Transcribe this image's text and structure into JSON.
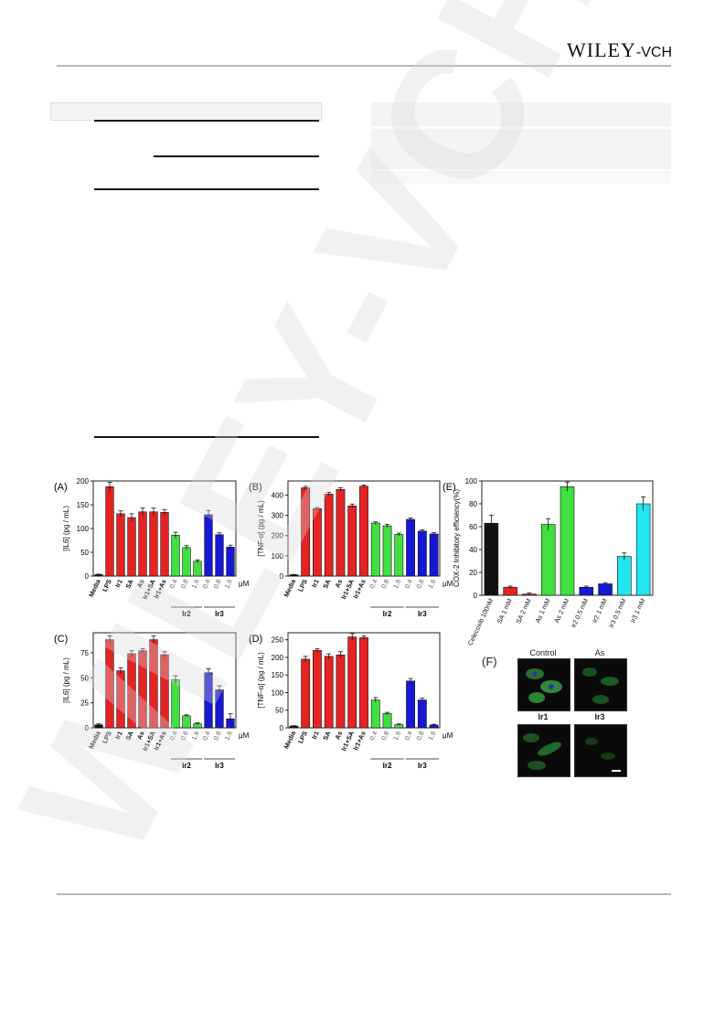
{
  "header": {
    "publisher_main": "WILEY",
    "publisher_suffix": "-VCH"
  },
  "watermark": {
    "text": "WILEY-VCH"
  },
  "colors": {
    "red": "#e52323",
    "green": "#3fe03f",
    "blue": "#1717d6",
    "cyan": "#22e6ef",
    "black": "#111111",
    "accent_rule": "#b9b9b9"
  },
  "figure": {
    "unit_label": "μM",
    "groups": {
      "ir2": "Ir2",
      "ir3": "Ir3"
    },
    "microscopy": {
      "label": "(F)",
      "cells": [
        "Control",
        "As",
        "Ir1",
        "Ir3"
      ]
    }
  },
  "chart_data": [
    {
      "type": "bar",
      "panel": "(A)",
      "ylabel": "[IL6] (pg / mL)",
      "ylim": [
        0,
        200
      ],
      "yticks": [
        0,
        50,
        100,
        150,
        200
      ],
      "categories": [
        "Media",
        "LPS",
        "Ir1",
        "SA",
        "As",
        "Ir1+SA",
        "Ir1+As",
        "0.4",
        "0.8",
        "1.6",
        "0.4",
        "0.8",
        "1.6"
      ],
      "values": [
        3,
        188,
        131,
        123,
        135,
        135,
        134,
        86,
        60,
        31,
        129,
        87,
        61
      ],
      "errors": [
        1,
        9,
        6,
        8,
        8,
        8,
        6,
        6,
        4,
        3,
        9,
        4,
        4
      ],
      "colors": [
        "black",
        "red",
        "red",
        "red",
        "red",
        "red",
        "red",
        "green",
        "green",
        "green",
        "blue",
        "blue",
        "blue"
      ]
    },
    {
      "type": "bar",
      "panel": "(B)",
      "ylabel": "[TNF-α] (pg / mL)",
      "ylim": [
        0,
        470
      ],
      "yticks": [
        0,
        100,
        200,
        300,
        400
      ],
      "categories": [
        "Media",
        "LPS",
        "Ir1",
        "SA",
        "As",
        "Ir1+SA",
        "Ir1+As",
        "0.4",
        "0.8",
        "1.6",
        "0.4",
        "0.8",
        "1.6"
      ],
      "values": [
        6,
        436,
        333,
        405,
        428,
        347,
        444,
        262,
        248,
        206,
        280,
        222,
        208
      ],
      "errors": [
        2,
        7,
        6,
        8,
        8,
        9,
        6,
        6,
        8,
        6,
        7,
        6,
        6
      ],
      "colors": [
        "black",
        "red",
        "red",
        "red",
        "red",
        "red",
        "red",
        "green",
        "green",
        "green",
        "blue",
        "blue",
        "blue"
      ]
    },
    {
      "type": "bar",
      "panel": "(C)",
      "ylabel": "[IL6] (pg / mL)",
      "ylim": [
        0,
        95
      ],
      "yticks": [
        0,
        25,
        50,
        75
      ],
      "categories": [
        "Media",
        "LPS",
        "Ir1",
        "SA",
        "As",
        "Ir1+SA",
        "Ir1+As",
        "0.4",
        "0.8",
        "1.6",
        "0.4",
        "0.8",
        "1.6"
      ],
      "values": [
        3,
        88,
        57,
        74,
        77,
        88,
        73,
        48,
        12,
        4,
        55,
        38,
        9
      ],
      "errors": [
        1,
        4,
        3,
        3,
        2,
        4,
        3,
        4,
        1,
        1,
        4,
        4,
        5
      ],
      "colors": [
        "black",
        "red",
        "red",
        "red",
        "red",
        "red",
        "red",
        "green",
        "green",
        "green",
        "blue",
        "blue",
        "blue"
      ]
    },
    {
      "type": "bar",
      "panel": "(D)",
      "ylabel": "[TNF-α] (pg / mL)",
      "ylim": [
        0,
        270
      ],
      "yticks": [
        0,
        50,
        100,
        150,
        200,
        250
      ],
      "categories": [
        "Media",
        "LPS",
        "Ir1",
        "SA",
        "As",
        "Ir1+SA",
        "Ir1+As",
        "0.4",
        "0.8",
        "1.6",
        "0.4",
        "0.8",
        "1.6"
      ],
      "values": [
        5,
        195,
        220,
        203,
        207,
        258,
        256,
        79,
        41,
        9,
        133,
        79,
        8
      ],
      "errors": [
        1,
        8,
        5,
        7,
        9,
        10,
        5,
        7,
        3,
        2,
        7,
        5,
        2
      ],
      "colors": [
        "black",
        "red",
        "red",
        "red",
        "red",
        "red",
        "red",
        "green",
        "green",
        "green",
        "blue",
        "blue",
        "blue"
      ]
    },
    {
      "type": "bar",
      "panel": "(E)",
      "ylabel": "COX-2 Inhibitory efficiency(%)",
      "ylim": [
        0,
        100
      ],
      "yticks": [
        0,
        20,
        40,
        60,
        80,
        100
      ],
      "categories": [
        "Celecoxib 100nM",
        "SA 1 mM",
        "SA 2 mM",
        "As 1 mM",
        "As 2 mM",
        "Ir2 0.5 mM",
        "Ir2 1 mM",
        "Ir3 0.5 mM",
        "Ir3 1 mM"
      ],
      "values": [
        63,
        7,
        1,
        62,
        95,
        7,
        10,
        34,
        80
      ],
      "errors": [
        7,
        1,
        1,
        5,
        4,
        1,
        1,
        3,
        6
      ],
      "colors": [
        "black",
        "red",
        "red",
        "green",
        "green",
        "blue",
        "blue",
        "cyan",
        "cyan"
      ]
    }
  ]
}
